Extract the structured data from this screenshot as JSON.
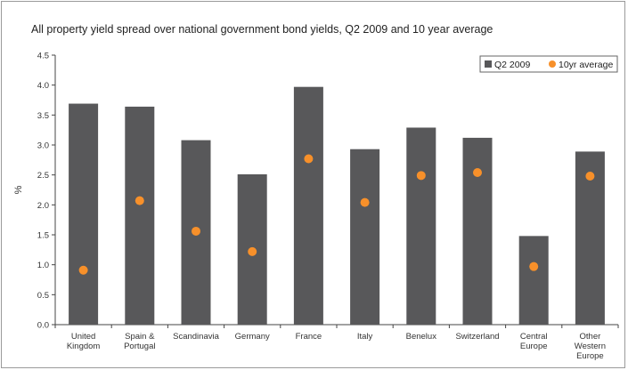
{
  "chart_data": {
    "type": "bar",
    "title": "All property yield spread over national government bond yields, Q2 2009 and 10 year average",
    "ylabel": "%",
    "xlabel": "",
    "ylim": [
      0,
      4.5
    ],
    "yticks": [
      "0.0",
      "0.5",
      "1.0",
      "1.5",
      "2.0",
      "2.5",
      "3.0",
      "3.5",
      "4.0",
      "4.5"
    ],
    "grid": false,
    "legend_position": "top-right",
    "categories": [
      [
        "United",
        "Kingdom"
      ],
      [
        "Spain &",
        "Portugal"
      ],
      [
        "Scandinavia"
      ],
      [
        "Germany"
      ],
      [
        "France"
      ],
      [
        "Italy"
      ],
      [
        "Benelux"
      ],
      [
        "Switzerland"
      ],
      [
        "Central",
        "Europe"
      ],
      [
        "Other",
        "Western",
        "Europe"
      ]
    ],
    "series": [
      {
        "name": "Q2 2009",
        "kind": "bar",
        "color": "#58585a",
        "values": [
          3.69,
          3.64,
          3.08,
          2.51,
          3.97,
          2.93,
          3.29,
          3.12,
          1.48,
          2.89
        ]
      },
      {
        "name": "10yr average",
        "kind": "marker",
        "color": "#f7902a",
        "values": [
          0.91,
          2.07,
          1.56,
          1.22,
          2.77,
          2.04,
          2.49,
          2.54,
          0.97,
          2.48
        ]
      }
    ]
  }
}
